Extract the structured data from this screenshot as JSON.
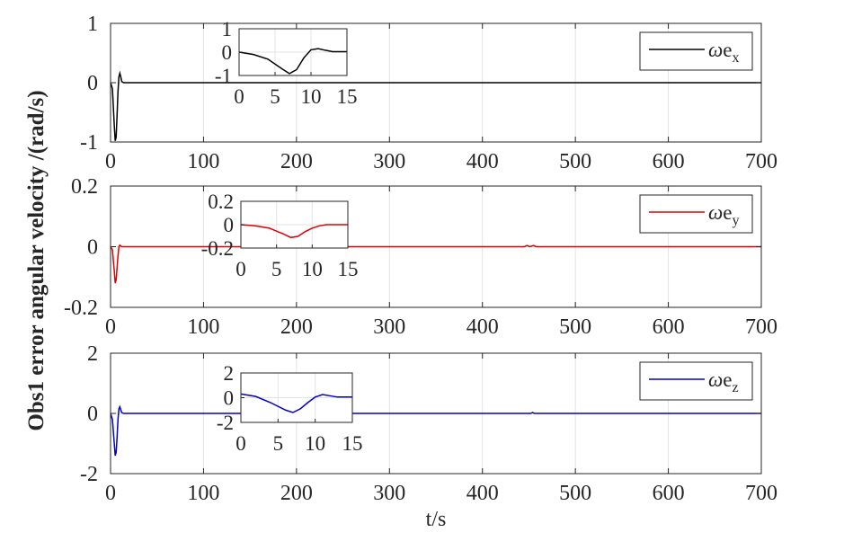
{
  "figure": {
    "ylabel": "Obs1 error angular velocity /(rad/s)",
    "xlabel": "t/s"
  },
  "chart_data": [
    {
      "type": "line",
      "xlim": [
        0,
        700
      ],
      "ylim": [
        -1,
        1
      ],
      "xticks": [
        0,
        100,
        200,
        300,
        400,
        500,
        600,
        700
      ],
      "yticks": [
        -1,
        0,
        1
      ],
      "ytick_labels": [
        "-1",
        "0",
        "1"
      ],
      "grid": true,
      "legend": {
        "position": "top-right",
        "symbol": "ω",
        "base": "e",
        "sub": "x"
      },
      "series": [
        {
          "name": "ωe_x",
          "color": "#000000",
          "points": [
            [
              0,
              0
            ],
            [
              2,
              -0.1
            ],
            [
              4,
              -0.72
            ],
            [
              5,
              -0.98
            ],
            [
              6,
              -0.92
            ],
            [
              7,
              -0.55
            ],
            [
              8,
              -0.15
            ],
            [
              9,
              0.1
            ],
            [
              10,
              0.16
            ],
            [
              11,
              0.1
            ],
            [
              12,
              0.02
            ],
            [
              14,
              0
            ],
            [
              700,
              0
            ]
          ]
        }
      ],
      "inset": {
        "xlim": [
          0,
          15
        ],
        "ylim": [
          -1,
          1
        ],
        "xticks": [
          0,
          5,
          10,
          15
        ],
        "yticks": [
          -1,
          0,
          1
        ],
        "ytick_labels": [
          "-1",
          "0",
          "1"
        ],
        "points": [
          [
            0,
            0
          ],
          [
            2,
            -0.1
          ],
          [
            4,
            -0.3
          ],
          [
            6,
            -0.72
          ],
          [
            7,
            -0.92
          ],
          [
            8,
            -0.75
          ],
          [
            9,
            -0.25
          ],
          [
            10,
            0.1
          ],
          [
            11,
            0.15
          ],
          [
            12,
            0.08
          ],
          [
            13,
            0.02
          ],
          [
            15,
            0.02
          ]
        ]
      }
    },
    {
      "type": "line",
      "xlim": [
        0,
        700
      ],
      "ylim": [
        -0.2,
        0.2
      ],
      "xticks": [
        0,
        100,
        200,
        300,
        400,
        500,
        600,
        700
      ],
      "yticks": [
        -0.2,
        0,
        0.2
      ],
      "ytick_labels": [
        "-0.2",
        "0",
        "0.2"
      ],
      "grid": true,
      "legend": {
        "position": "top-right",
        "symbol": "ω",
        "base": "e",
        "sub": "y"
      },
      "series": [
        {
          "name": "ωe_y",
          "color": "#e00000",
          "points": [
            [
              0,
              0
            ],
            [
              2,
              -0.01
            ],
            [
              4,
              -0.08
            ],
            [
              5,
              -0.12
            ],
            [
              6,
              -0.11
            ],
            [
              7,
              -0.07
            ],
            [
              8,
              -0.03
            ],
            [
              9,
              0
            ],
            [
              10,
              0.005
            ],
            [
              12,
              0
            ],
            [
              445,
              0
            ],
            [
              448,
              0.004
            ],
            [
              451,
              0
            ],
            [
              455,
              0.004
            ],
            [
              458,
              0
            ],
            [
              700,
              0
            ]
          ]
        }
      ],
      "inset": {
        "xlim": [
          0,
          15
        ],
        "ylim": [
          -0.2,
          0.2
        ],
        "xticks": [
          0,
          5,
          10,
          15
        ],
        "yticks": [
          -0.2,
          0,
          0.2
        ],
        "ytick_labels": [
          "-0.2",
          "0",
          "0.2"
        ],
        "points": [
          [
            0,
            0
          ],
          [
            2,
            -0.01
          ],
          [
            4,
            -0.03
          ],
          [
            6,
            -0.08
          ],
          [
            7,
            -0.11
          ],
          [
            8,
            -0.1
          ],
          [
            9,
            -0.06
          ],
          [
            10,
            -0.03
          ],
          [
            11,
            -0.01
          ],
          [
            12,
            0
          ],
          [
            15,
            0
          ]
        ]
      }
    },
    {
      "type": "line",
      "xlim": [
        0,
        700
      ],
      "ylim": [
        -2,
        2
      ],
      "xticks": [
        0,
        100,
        200,
        300,
        400,
        500,
        600,
        700
      ],
      "yticks": [
        -2,
        0,
        2
      ],
      "ytick_labels": [
        "-2",
        "0",
        "2"
      ],
      "grid": true,
      "legend": {
        "position": "top-right",
        "symbol": "ω",
        "base": "e",
        "sub": "z"
      },
      "series": [
        {
          "name": "ωe_z",
          "color": "#0000cc",
          "points": [
            [
              0,
              0
            ],
            [
              2,
              -0.2
            ],
            [
              4,
              -1.0
            ],
            [
              5,
              -1.4
            ],
            [
              6,
              -1.3
            ],
            [
              7,
              -0.8
            ],
            [
              8,
              -0.2
            ],
            [
              9,
              0.15
            ],
            [
              10,
              0.22
            ],
            [
              11,
              0.12
            ],
            [
              12,
              0.03
            ],
            [
              14,
              0
            ],
            [
              452,
              0
            ],
            [
              454,
              0.03
            ],
            [
              456,
              0
            ],
            [
              700,
              0
            ]
          ]
        }
      ],
      "inset": {
        "xlim": [
          0,
          15
        ],
        "ylim": [
          -2,
          2
        ],
        "xticks": [
          0,
          5,
          10,
          15
        ],
        "yticks": [
          -2,
          0,
          2
        ],
        "ytick_labels": [
          "-2",
          "0",
          "2"
        ],
        "points": [
          [
            0,
            0.3
          ],
          [
            2,
            0.1
          ],
          [
            4,
            -0.4
          ],
          [
            6,
            -1.0
          ],
          [
            7,
            -1.2
          ],
          [
            8,
            -0.9
          ],
          [
            9,
            -0.4
          ],
          [
            10,
            0.05
          ],
          [
            11,
            0.25
          ],
          [
            12,
            0.15
          ],
          [
            13,
            0.05
          ],
          [
            15,
            0.05
          ]
        ]
      }
    }
  ]
}
